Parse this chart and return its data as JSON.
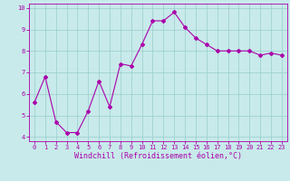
{
  "xlabel": "Windchill (Refroidissement éolien,°C)",
  "ylabel": "",
  "background_color": "#c8eaea",
  "line_color": "#aa00aa",
  "marker": "D",
  "markersize": 2.0,
  "linewidth": 0.8,
  "xlim": [
    -0.5,
    23.5
  ],
  "ylim": [
    3.8,
    10.2
  ],
  "xticks": [
    0,
    1,
    2,
    3,
    4,
    5,
    6,
    7,
    8,
    9,
    10,
    11,
    12,
    13,
    14,
    15,
    16,
    17,
    18,
    19,
    20,
    21,
    22,
    23
  ],
  "yticks": [
    4,
    5,
    6,
    7,
    8,
    9,
    10
  ],
  "x_data": [
    0,
    1,
    2,
    3,
    4,
    5,
    6,
    7,
    8,
    9,
    10,
    11,
    12,
    13,
    14,
    15,
    16,
    17,
    18,
    19,
    20,
    21,
    22,
    23
  ],
  "y_data": [
    5.6,
    6.8,
    4.7,
    4.2,
    4.2,
    5.2,
    6.6,
    5.4,
    7.4,
    7.3,
    8.3,
    9.4,
    9.4,
    9.8,
    9.1,
    8.6,
    8.3,
    8.0,
    8.0,
    8.0,
    8.0,
    7.8,
    7.9,
    7.8
  ],
  "grid_color": "#99cccc",
  "tick_fontsize": 5.0,
  "xlabel_fontsize": 6.0,
  "font_family": "monospace"
}
